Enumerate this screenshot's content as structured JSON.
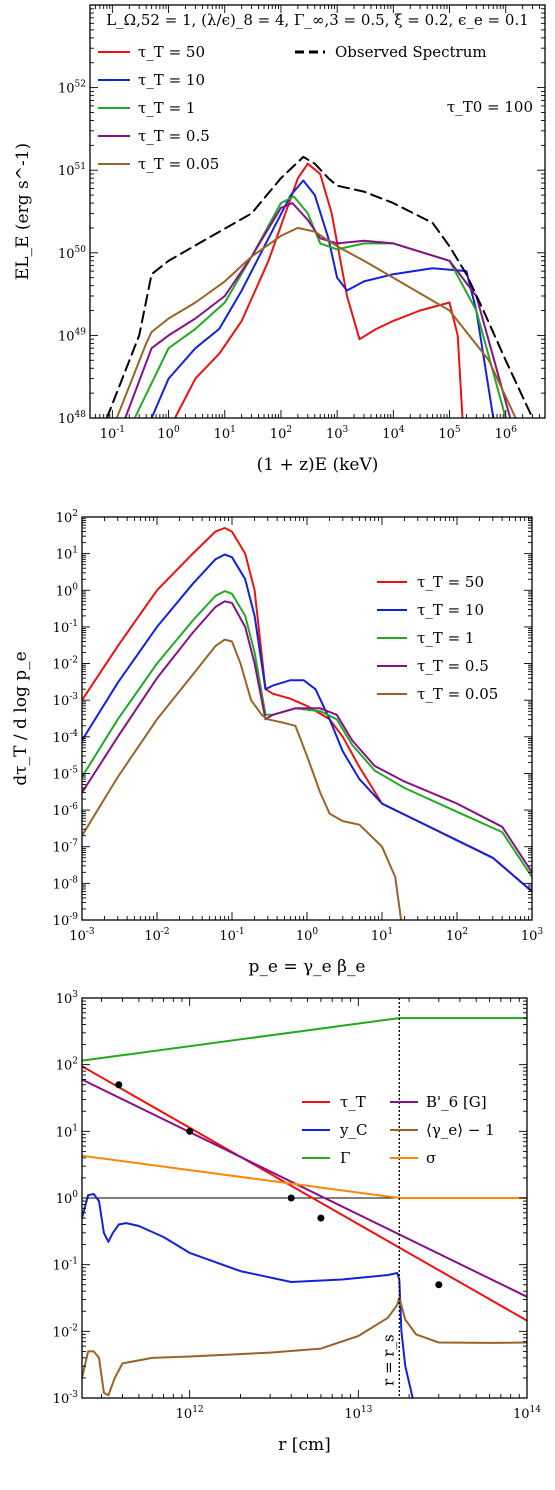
{
  "chart_data": [
    {
      "type": "line",
      "xscale": "log",
      "yscale": "log",
      "xlim": [
        0.04,
        5000000
      ],
      "ylim": [
        1e+48,
        1e+53
      ],
      "xticks": [
        0.1,
        1,
        10,
        100,
        1000,
        10000,
        100000,
        1000000
      ],
      "xtick_labels": [
        {
          "b": "10",
          "e": "-1"
        },
        {
          "b": "10",
          "e": "0"
        },
        {
          "b": "10",
          "e": "1"
        },
        {
          "b": "10",
          "e": "2"
        },
        {
          "b": "10",
          "e": "3"
        },
        {
          "b": "10",
          "e": "4"
        },
        {
          "b": "10",
          "e": "5"
        },
        {
          "b": "10",
          "e": "6"
        }
      ],
      "yticks": [
        1e+48,
        1e+49,
        1e+50,
        1e+51,
        1e+52
      ],
      "ytick_labels": [
        {
          "b": "10",
          "e": "48"
        },
        {
          "b": "10",
          "e": "49"
        },
        {
          "b": "10",
          "e": "50"
        },
        {
          "b": "10",
          "e": "51"
        },
        {
          "b": "10",
          "e": "52"
        }
      ],
      "xlabel": "(1 + z)E (keV)",
      "ylabel": "EL_E (erg s^-1)",
      "annotation_top": "L_Ω,52 = 1,  (λ/ϵ)_8 = 4,  Γ_∞,3 = 0.5,  ξ = 0.2,  ϵ_e = 0.1",
      "annotation_right": "τ_T0 = 100",
      "legend": "top-left",
      "series": [
        {
          "name": "τ_T = 50",
          "color": "#ee1111",
          "dash": false,
          "x": [
            1.3,
            3,
            8,
            20,
            60,
            130,
            200,
            300,
            500,
            800,
            1500,
            2500,
            5000,
            10000,
            30000,
            100000,
            140000,
            170000
          ],
          "y": [
            1e+48,
            3e+48,
            6e+48,
            1.5e+49,
            8e+49,
            3.5e+50,
            8e+50,
            1.2e+51,
            9e+50,
            3e+50,
            3e+49,
            9e+48,
            1.2e+49,
            1.5e+49,
            2e+49,
            2.5e+49,
            1e+49,
            1e+48
          ]
        },
        {
          "name": "τ_T = 10",
          "color": "#1122dd",
          "dash": false,
          "x": [
            0.5,
            1,
            3,
            8,
            20,
            60,
            150,
            250,
            400,
            700,
            1000,
            1500,
            3000,
            10000,
            50000,
            200000,
            300000,
            600000
          ],
          "y": [
            1e+48,
            3e+48,
            7e+48,
            1.2e+49,
            3.5e+49,
            1.5e+50,
            5e+50,
            7.5e+50,
            5e+50,
            1.5e+50,
            5e+49,
            3.5e+49,
            4.5e+49,
            5.5e+49,
            6.5e+49,
            6e+49,
            2e+49,
            1e+48
          ]
        },
        {
          "name": "τ_T = 1",
          "color": "#22aa22",
          "dash": false,
          "x": [
            0.25,
            1,
            3,
            10,
            30,
            100,
            170,
            300,
            500,
            1000,
            3000,
            10000,
            100000,
            300000,
            1000000
          ],
          "y": [
            1e+48,
            7e+48,
            1.2e+49,
            2.5e+49,
            9e+49,
            4e+50,
            4.8e+50,
            3e+50,
            1.3e+50,
            1.1e+50,
            1.3e+50,
            1.3e+50,
            8e+49,
            2e+49,
            1e+48
          ]
        },
        {
          "name": "τ_T = 0.5",
          "color": "#881188",
          "dash": false,
          "x": [
            0.17,
            0.5,
            1,
            3,
            10,
            30,
            100,
            160,
            300,
            500,
            1000,
            3000,
            10000,
            100000,
            300000,
            1200000
          ],
          "y": [
            1e+48,
            7e+48,
            1e+49,
            1.6e+49,
            3e+49,
            9e+49,
            3.5e+50,
            4e+50,
            2.5e+50,
            1.5e+50,
            1.3e+50,
            1.4e+50,
            1.3e+50,
            8e+49,
            3e+49,
            1e+48
          ]
        },
        {
          "name": "τ_T = 0.05",
          "color": "#9a6328",
          "dash": false,
          "x": [
            0.12,
            0.4,
            0.5,
            1,
            3,
            10,
            30,
            100,
            200,
            400,
            1000,
            3000,
            10000,
            100000,
            500000,
            1500000
          ],
          "y": [
            1e+48,
            8e+48,
            1.1e+49,
            1.6e+49,
            2.5e+49,
            4.5e+49,
            9e+49,
            1.6e+50,
            2e+50,
            1.8e+50,
            1.2e+50,
            8e+49,
            5e+49,
            2e+49,
            5e+48,
            1e+48
          ]
        },
        {
          "name": "Observed Spectrum",
          "color": "#000000",
          "dash": true,
          "x": [
            0.08,
            0.3,
            0.5,
            1,
            5,
            30,
            100,
            250,
            400,
            700,
            1000,
            3000,
            10000,
            50000,
            100000,
            200000,
            400000,
            1000000,
            3000000
          ],
          "y": [
            1e+48,
            1e+49,
            5.5e+49,
            8e+49,
            1.5e+50,
            3e+50,
            8e+50,
            1.45e+51,
            1.2e+51,
            8e+50,
            6.5e+50,
            5.5e+50,
            4e+50,
            2.3e+50,
            1.2e+50,
            5.5e+49,
            2e+49,
            5e+48,
            1e+48
          ]
        }
      ]
    },
    {
      "type": "line",
      "xscale": "log",
      "yscale": "log",
      "xlim": [
        0.001,
        1000
      ],
      "ylim": [
        1e-09,
        100
      ],
      "xticks": [
        0.001,
        0.01,
        0.1,
        1,
        10,
        100,
        1000
      ],
      "xtick_labels": [
        {
          "b": "10",
          "e": "-3"
        },
        {
          "b": "10",
          "e": "-2"
        },
        {
          "b": "10",
          "e": "-1"
        },
        {
          "b": "10",
          "e": "0"
        },
        {
          "b": "10",
          "e": "1"
        },
        {
          "b": "10",
          "e": "2"
        },
        {
          "b": "10",
          "e": "3"
        }
      ],
      "yticks": [
        1e-09,
        1e-08,
        1e-07,
        1e-06,
        1e-05,
        0.0001,
        0.001,
        0.01,
        0.1,
        1,
        10,
        100
      ],
      "ytick_labels": [
        {
          "b": "10",
          "e": "-9"
        },
        {
          "b": "10",
          "e": "-8"
        },
        {
          "b": "10",
          "e": "-7"
        },
        {
          "b": "10",
          "e": "-6"
        },
        {
          "b": "10",
          "e": "-5"
        },
        {
          "b": "10",
          "e": "-4"
        },
        {
          "b": "10",
          "e": "-3"
        },
        {
          "b": "10",
          "e": "-2"
        },
        {
          "b": "10",
          "e": "-1"
        },
        {
          "b": "10",
          "e": "0"
        },
        {
          "b": "10",
          "e": "1"
        },
        {
          "b": "10",
          "e": "2"
        }
      ],
      "xlabel": "p_e = γ_e β_e",
      "ylabel": "dτ_T / d log p_e",
      "legend": "center-right",
      "series": [
        {
          "name": "τ_T = 50",
          "color": "#ee1111",
          "x": [
            0.001,
            0.003,
            0.01,
            0.03,
            0.06,
            0.08,
            0.1,
            0.15,
            0.2,
            0.28,
            0.35,
            0.6,
            1,
            2,
            3,
            5,
            10,
            30,
            100,
            300,
            1000
          ],
          "y": [
            0.001,
            0.03,
            1,
            10,
            40,
            50,
            40,
            10,
            1,
            0.002,
            0.0015,
            0.0011,
            0.0007,
            0.0003,
            0.0001,
            1.5e-05,
            1.5e-06,
            5e-07,
            1.5e-07,
            5e-08,
            6e-09
          ]
        },
        {
          "name": "τ_T = 10",
          "color": "#1122dd",
          "x": [
            0.001,
            0.003,
            0.01,
            0.03,
            0.06,
            0.08,
            0.1,
            0.15,
            0.2,
            0.28,
            0.35,
            0.6,
            0.9,
            1.3,
            2,
            3,
            5,
            10,
            30,
            100,
            300,
            1000
          ],
          "y": [
            8e-05,
            0.003,
            0.1,
            1.5,
            7,
            9.5,
            8,
            2,
            0.2,
            0.002,
            0.0025,
            0.0035,
            0.0035,
            0.002,
            0.0003,
            4e-05,
            7e-06,
            1.5e-06,
            5e-07,
            1.5e-07,
            5e-08,
            6e-09
          ]
        },
        {
          "name": "τ_T = 1",
          "color": "#22aa22",
          "x": [
            0.001,
            0.003,
            0.01,
            0.03,
            0.06,
            0.08,
            0.1,
            0.15,
            0.2,
            0.28,
            0.35,
            0.7,
            1.5,
            2.5,
            4,
            8,
            20,
            100,
            400,
            1000
          ],
          "y": [
            8e-06,
            0.0003,
            0.01,
            0.15,
            0.7,
            0.95,
            0.8,
            0.2,
            0.02,
            0.0004,
            0.0004,
            0.0006,
            0.0005,
            0.0003,
            6e-05,
            1.2e-05,
            4e-06,
            9e-07,
            2.5e-07,
            1.5e-08
          ]
        },
        {
          "name": "τ_T = 0.5",
          "color": "#881188",
          "x": [
            0.001,
            0.003,
            0.01,
            0.03,
            0.06,
            0.08,
            0.1,
            0.15,
            0.2,
            0.28,
            0.35,
            0.7,
            1.5,
            2.5,
            4,
            8,
            20,
            100,
            400,
            1000
          ],
          "y": [
            3e-06,
            0.0001,
            0.004,
            0.07,
            0.35,
            0.5,
            0.45,
            0.1,
            0.01,
            0.0003,
            0.0004,
            0.0006,
            0.0006,
            0.0004,
            8e-05,
            1.6e-05,
            6e-06,
            1.5e-06,
            3.5e-07,
            2e-08
          ]
        },
        {
          "name": "τ_T = 0.05",
          "color": "#9a6328",
          "x": [
            0.001,
            0.003,
            0.01,
            0.03,
            0.06,
            0.08,
            0.1,
            0.13,
            0.18,
            0.25,
            0.3,
            0.45,
            0.7,
            1,
            1.5,
            2,
            3,
            5,
            10,
            15,
            18
          ],
          "y": [
            2e-07,
            8e-06,
            0.0003,
            0.005,
            0.03,
            0.045,
            0.04,
            0.01,
            0.001,
            0.0004,
            0.0003,
            0.00025,
            0.0002,
            3e-05,
            3e-06,
            8e-07,
            5e-07,
            4e-07,
            1e-07,
            1.5e-08,
            1e-09
          ]
        }
      ]
    },
    {
      "type": "line",
      "xscale": "log",
      "yscale": "log",
      "xlim": [
        230000000000,
        100000000000000
      ],
      "ylim": [
        0.001,
        1000
      ],
      "xticks": [
        1000000000000,
        10000000000000,
        100000000000000
      ],
      "xtick_labels": [
        {
          "b": "10",
          "e": "12"
        },
        {
          "b": "10",
          "e": "13"
        },
        {
          "b": "10",
          "e": "14"
        }
      ],
      "yticks": [
        0.001,
        0.01,
        0.1,
        1,
        10,
        100,
        1000
      ],
      "ytick_labels": [
        {
          "b": "10",
          "e": "-3"
        },
        {
          "b": "10",
          "e": "-2"
        },
        {
          "b": "10",
          "e": "-1"
        },
        {
          "b": "10",
          "e": "0"
        },
        {
          "b": "10",
          "e": "1"
        },
        {
          "b": "10",
          "e": "2"
        },
        {
          "b": "10",
          "e": "3"
        }
      ],
      "xlabel": "r [cm]",
      "ylabel": "",
      "vline": {
        "x": 17500000000000,
        "label": "r = r_s"
      },
      "hline": {
        "y": 1
      },
      "legend": "center-right",
      "series": [
        {
          "name": "τ_T",
          "color": "#ee1111",
          "x": [
            230000000000,
            100000000000000
          ],
          "y": [
            95,
            0.0145
          ]
        },
        {
          "name": "y_C",
          "color": "#1122dd",
          "x": [
            230000000000,
            250000000000,
            270000000000,
            290000000000,
            310000000000,
            330000000000,
            350000000000,
            380000000000,
            420000000000,
            500000000000,
            700000000000,
            1000000000000,
            2000000000000,
            4000000000000,
            8000000000000,
            15000000000000,
            17000000000000,
            17500000000000,
            18000000000000,
            19000000000000,
            21000000000000
          ],
          "y": [
            0.5,
            1.1,
            1.15,
            0.9,
            0.3,
            0.22,
            0.3,
            0.4,
            0.42,
            0.38,
            0.26,
            0.15,
            0.08,
            0.055,
            0.06,
            0.07,
            0.075,
            0.06,
            0.01,
            0.003,
            0.001
          ]
        },
        {
          "name": "Γ",
          "color": "#22aa22",
          "x": [
            230000000000,
            17500000000000,
            100000000000000
          ],
          "y": [
            115,
            500,
            500
          ]
        },
        {
          "name": "B'_6 [G]",
          "color": "#881188",
          "x": [
            230000000000,
            100000000000000
          ],
          "y": [
            60,
            0.033
          ]
        },
        {
          "name": "⟨γ_e⟩ − 1",
          "color": "#9a6328",
          "x": [
            230000000000,
            250000000000,
            270000000000,
            290000000000,
            310000000000,
            330000000000,
            360000000000,
            400000000000,
            600000000000,
            1000000000000,
            3000000000000,
            6000000000000,
            10000000000000,
            15000000000000,
            17000000000000,
            17500000000000,
            19000000000000,
            22000000000000,
            30000000000000,
            60000000000000,
            100000000000000
          ],
          "y": [
            0.002,
            0.005,
            0.005,
            0.004,
            0.0012,
            0.0011,
            0.002,
            0.0033,
            0.004,
            0.0042,
            0.0048,
            0.0055,
            0.0085,
            0.016,
            0.025,
            0.032,
            0.015,
            0.009,
            0.0068,
            0.0067,
            0.0068
          ]
        },
        {
          "name": "σ",
          "color": "#ff8800",
          "x": [
            230000000000,
            17500000000000,
            100000000000000
          ],
          "y": [
            4.3,
            1,
            1
          ]
        }
      ],
      "markers": [
        {
          "x": 380000000000,
          "y": 50
        },
        {
          "x": 1000000000000,
          "y": 10
        },
        {
          "x": 4000000000000,
          "y": 1
        },
        {
          "x": 6000000000000,
          "y": 0.5
        },
        {
          "x": 30000000000000,
          "y": 0.05
        }
      ]
    }
  ]
}
